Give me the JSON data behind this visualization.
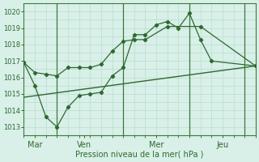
{
  "background_color": "#d8f0e8",
  "grid_color": "#b8ddd0",
  "line_color": "#2d6a2d",
  "xlabel": "Pression niveau de la mer( hPa )",
  "ylim": [
    1012.5,
    1020.5
  ],
  "yticks": [
    1013,
    1014,
    1015,
    1016,
    1017,
    1018,
    1019,
    1020
  ],
  "xlim": [
    0,
    21
  ],
  "day_labels": [
    "Mar",
    "Ven",
    "Mer",
    "Jeu"
  ],
  "day_positions": [
    1,
    5.5,
    12,
    18
  ],
  "vline_positions": [
    3,
    9,
    15,
    20
  ],
  "series1_x": [
    0,
    1,
    2,
    3,
    4,
    5,
    6,
    7,
    8,
    9,
    10,
    11,
    13,
    16,
    21
  ],
  "series1_y": [
    1016.9,
    1016.3,
    1016.2,
    1016.1,
    1016.6,
    1016.6,
    1016.6,
    1016.8,
    1017.6,
    1018.2,
    1018.3,
    1018.3,
    1019.1,
    1019.1,
    1016.7
  ],
  "series2_x": [
    0,
    1,
    2,
    3,
    4,
    5,
    6,
    7,
    8,
    9,
    10,
    11,
    12,
    13,
    14,
    15,
    16,
    17,
    21
  ],
  "series2_y": [
    1016.9,
    1015.5,
    1013.6,
    1013.0,
    1014.2,
    1014.9,
    1015.0,
    1015.1,
    1016.1,
    1016.6,
    1018.6,
    1018.6,
    1019.2,
    1019.4,
    1019.0,
    1019.9,
    1018.3,
    1017.0,
    1016.7
  ],
  "series3_x": [
    0,
    21
  ],
  "series3_y": [
    1014.8,
    1016.7
  ]
}
